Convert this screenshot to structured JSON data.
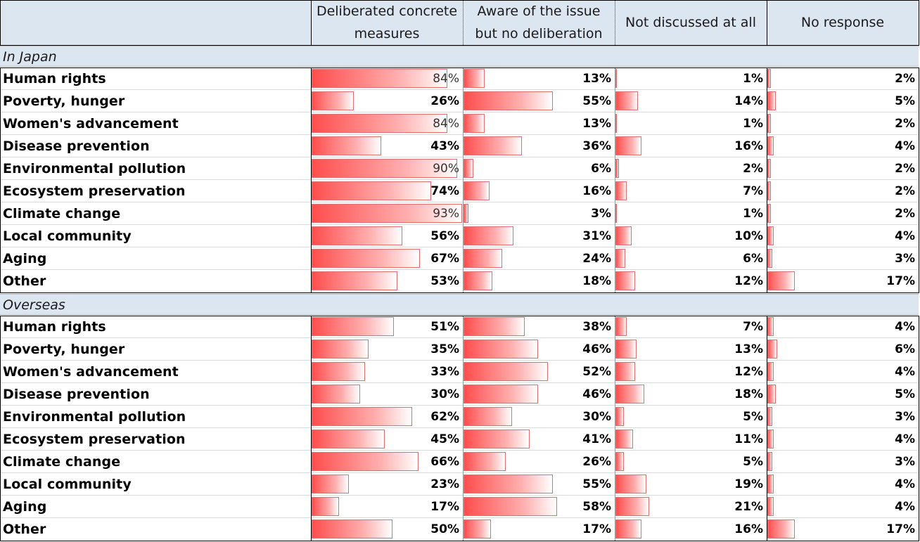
{
  "columns": [
    "Deliberated concrete\nmeasures",
    "Aware of the issue\nbut no deliberation",
    "Not discussed at all",
    "No response"
  ],
  "sections": [
    {
      "label": "In Japan",
      "rows": [
        {
          "label": "Human rights",
          "values": [
            84,
            13,
            1,
            2
          ]
        },
        {
          "label": "Poverty, hunger",
          "values": [
            26,
            55,
            14,
            5
          ]
        },
        {
          "label": "Women's advancement",
          "values": [
            84,
            13,
            1,
            2
          ]
        },
        {
          "label": "Disease prevention",
          "values": [
            43,
            36,
            16,
            4
          ]
        },
        {
          "label": "Environmental pollution",
          "values": [
            90,
            6,
            2,
            2
          ]
        },
        {
          "label": "Ecosystem preservation",
          "values": [
            74,
            16,
            7,
            2
          ]
        },
        {
          "label": "Climate change",
          "values": [
            93,
            3,
            1,
            2
          ]
        },
        {
          "label": "Local community",
          "values": [
            56,
            31,
            10,
            4
          ]
        },
        {
          "label": "Aging",
          "values": [
            67,
            24,
            6,
            3
          ]
        },
        {
          "label": "Other",
          "values": [
            53,
            18,
            12,
            17
          ]
        }
      ]
    },
    {
      "label": "Overseas",
      "rows": [
        {
          "label": "Human rights",
          "values": [
            51,
            38,
            7,
            4
          ]
        },
        {
          "label": "Poverty, hunger",
          "values": [
            35,
            46,
            13,
            6
          ]
        },
        {
          "label": "Women's advancement",
          "values": [
            33,
            52,
            12,
            4
          ]
        },
        {
          "label": "Disease prevention",
          "values": [
            30,
            46,
            18,
            5
          ]
        },
        {
          "label": "Environmental pollution",
          "values": [
            62,
            30,
            5,
            3
          ]
        },
        {
          "label": "Ecosystem preservation",
          "values": [
            45,
            41,
            11,
            4
          ]
        },
        {
          "label": "Climate change",
          "values": [
            66,
            26,
            5,
            3
          ]
        },
        {
          "label": "Local community",
          "values": [
            23,
            55,
            19,
            4
          ]
        },
        {
          "label": "Aging",
          "values": [
            17,
            58,
            21,
            4
          ]
        },
        {
          "label": "Other",
          "values": [
            50,
            17,
            16,
            17
          ]
        }
      ]
    }
  ],
  "unit": "%",
  "colors": {
    "header_bg": "#dce6f1",
    "bar_start": "#ff4d4d",
    "bar_border": "#e07070"
  }
}
